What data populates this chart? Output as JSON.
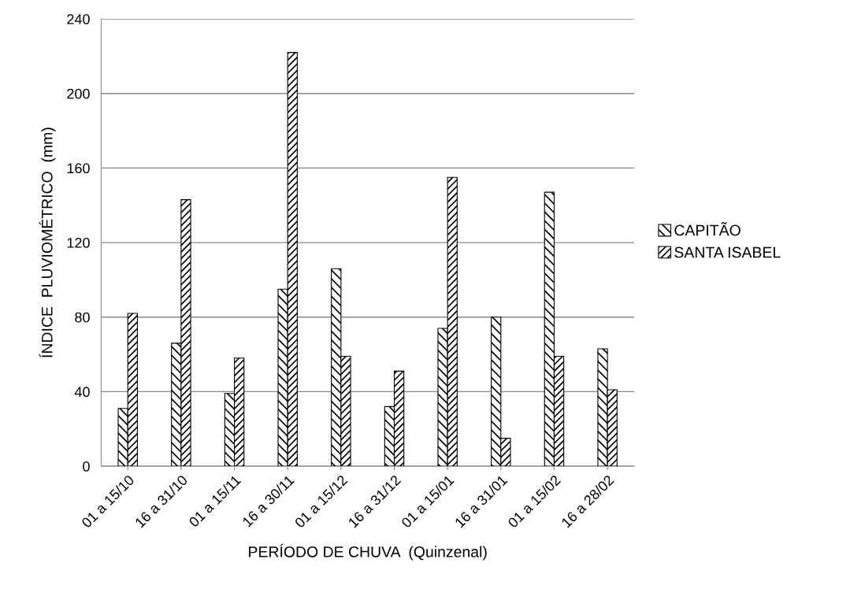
{
  "chart_data": {
    "type": "bar",
    "xlabel": "PERÍODO DE CHUVA  (Quinzenal)",
    "ylabel": "ÍNDICE  PLUVIOMÉTRICO  (mm)",
    "categories": [
      "01 a 15/10",
      "16 a 31/10",
      "01 a 15/11",
      "16 a 30/11",
      "01 a 15/12",
      "16 a 31/12",
      "01 a 15/01",
      "16 a 31/01",
      "01 a 15/02",
      "16 a 28/02"
    ],
    "series": [
      {
        "name": "CAPITÃO",
        "color": "#000000",
        "values": [
          31,
          66,
          39,
          95,
          106,
          32,
          74,
          80,
          147,
          63
        ]
      },
      {
        "name": "SANTA ISABEL",
        "color": "#000000",
        "values": [
          82,
          143,
          58,
          222,
          59,
          51,
          155,
          15,
          59,
          41
        ]
      }
    ],
    "ylim": [
      0,
      240
    ],
    "yticks": [
      0,
      40,
      80,
      120,
      160,
      200,
      240
    ],
    "grid": "y",
    "legend": "right"
  }
}
